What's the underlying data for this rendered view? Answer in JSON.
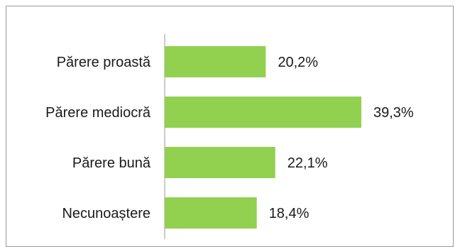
{
  "chart_data": {
    "type": "bar",
    "orientation": "horizontal",
    "categories": [
      "Părere proastă",
      "Părere mediocră",
      "Părere bună",
      "Necunoaștere"
    ],
    "values": [
      20.2,
      39.3,
      22.1,
      18.4
    ],
    "value_labels": [
      "20,2%",
      "39,3%",
      "22,1%",
      "18,4%"
    ],
    "unit": "%",
    "bar_color": "#92D050",
    "title": "",
    "xlabel": "",
    "ylabel": "",
    "grid": false,
    "legend": "none"
  }
}
